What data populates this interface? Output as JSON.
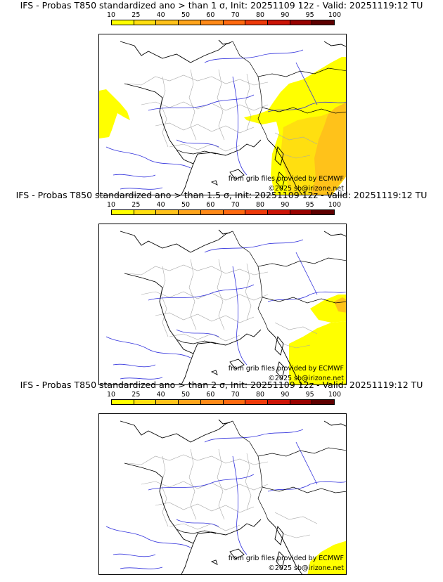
{
  "colorbar": {
    "ticks": [
      "10",
      "25",
      "40",
      "50",
      "60",
      "70",
      "80",
      "90",
      "95",
      "100"
    ],
    "colors": [
      "#ffff00",
      "#ffdf10",
      "#ffc21a",
      "#ffa51c",
      "#ff8a18",
      "#ff6a10",
      "#ee3a0a",
      "#cc1406",
      "#990200",
      "#5e0000"
    ]
  },
  "panels": [
    {
      "title": "IFS - Probas T850  standardized ano > than 1 σ, Init: 20251109 12z - Valid: 20251119:12 TU",
      "credit_source": "from grib files provided by ECMWF",
      "credit_copyright": "©2025 sb@irizone.net",
      "anomaly_areas": [
        {
          "region": "bay of biscay west",
          "probability_class": "10-25"
        },
        {
          "region": "alps and italy",
          "probability_class": "10-25"
        },
        {
          "region": "italy east",
          "probability_class": "25-40"
        }
      ]
    },
    {
      "title": "IFS - Probas T850  standardized ano > than 1.5 σ, Init: 20251109 12z - Valid: 20251119:12 TU",
      "credit_source": "from grib files provided by ECMWF",
      "credit_copyright": "©2025 sb@irizone.net",
      "anomaly_areas": [
        {
          "region": "tyrrhenian and italy south",
          "probability_class": "10-25"
        },
        {
          "region": "adriatic coast",
          "probability_class": "25-40"
        }
      ]
    },
    {
      "title": "IFS - Probas T850  standardized ano > than 2 σ, Init: 20251109 12z - Valid: 20251119:12 TU",
      "credit_source": "from grib files provided by ECMWF",
      "credit_copyright": "©2025 sb@irizone.net",
      "anomaly_areas": [
        {
          "region": "southern italy corner",
          "probability_class": "10-25"
        }
      ]
    }
  ]
}
